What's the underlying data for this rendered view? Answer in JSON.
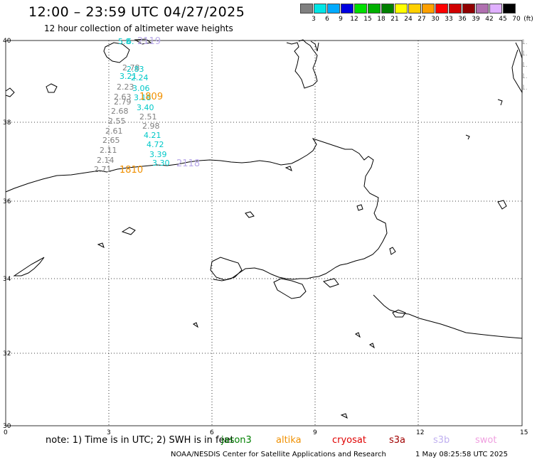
{
  "header": {
    "title": "12:00 – 23:59 UTC 04/27/2025",
    "subtitle": "12 hour collection of altimeter wave heights"
  },
  "color_scale": {
    "values": [
      "3",
      "6",
      "9",
      "12",
      "15",
      "18",
      "21",
      "24",
      "27",
      "30",
      "33",
      "36",
      "39",
      "42",
      "45",
      "70"
    ],
    "unit": "(ft)",
    "colors": [
      "#808080",
      "#00e5e5",
      "#00aaff",
      "#0000e0",
      "#00e000",
      "#00b000",
      "#008000",
      "#ffff00",
      "#ffd000",
      "#ffa000",
      "#ff0000",
      "#d00000",
      "#900000",
      "#b070b0",
      "#e0b0ff",
      "#000000"
    ]
  },
  "axes": {
    "lat_labels": [
      "40",
      "38",
      "36",
      "34",
      "32",
      "30"
    ],
    "lon_labels": [
      "0",
      "3",
      "6",
      "9",
      "12",
      "15"
    ],
    "right_edge_labels": [
      "1.",
      "1.",
      "1.",
      "1.",
      "1."
    ]
  },
  "observations": [
    {
      "text": "5.8",
      "color": "#00c8c8"
    },
    {
      "text": "6.",
      "color": "#00c8c8"
    },
    {
      "text": "2119",
      "color": "#b8a8e8"
    },
    {
      "text": "2.78",
      "color": "#808080"
    },
    {
      "text": "2.83",
      "color": "#00c8c8"
    },
    {
      "text": "3.21",
      "color": "#00c8c8"
    },
    {
      "text": "2.24",
      "color": "#00c8c8"
    },
    {
      "text": "2.23",
      "color": "#808080"
    },
    {
      "text": "3.06",
      "color": "#00c8c8"
    },
    {
      "text": "2.63",
      "color": "#808080"
    },
    {
      "text": "3.18",
      "color": "#00c8c8"
    },
    {
      "text": "1809",
      "color": "#f09000"
    },
    {
      "text": "2.79",
      "color": "#808080"
    },
    {
      "text": "3.40",
      "color": "#00c8c8"
    },
    {
      "text": "2.68",
      "color": "#808080"
    },
    {
      "text": "2.51",
      "color": "#808080"
    },
    {
      "text": "2.55",
      "color": "#808080"
    },
    {
      "text": "2.98",
      "color": "#808080"
    },
    {
      "text": "2.61",
      "color": "#808080"
    },
    {
      "text": "4.21",
      "color": "#00c8c8"
    },
    {
      "text": "2.65",
      "color": "#808080"
    },
    {
      "text": "4.72",
      "color": "#00c8c8"
    },
    {
      "text": "2.11",
      "color": "#808080"
    },
    {
      "text": "3.39",
      "color": "#00c8c8"
    },
    {
      "text": "2.14",
      "color": "#808080"
    },
    {
      "text": "3.30",
      "color": "#00c8c8"
    },
    {
      "text": "2118",
      "color": "#b8a8e8"
    },
    {
      "text": "2.71",
      "color": "#808080"
    },
    {
      "text": "1810",
      "color": "#f09000"
    }
  ],
  "footer": {
    "note": "note:  1) Time is in UTC;  2) SWH is in feet",
    "satellites": [
      {
        "name": "jason3",
        "color": "#008000"
      },
      {
        "name": "altika",
        "color": "#f09000"
      },
      {
        "name": "cryosat",
        "color": "#e00000"
      },
      {
        "name": "s3a",
        "color": "#a00000"
      },
      {
        "name": "s3b",
        "color": "#c0b0f0"
      },
      {
        "name": "swot",
        "color": "#f0a0e0"
      }
    ],
    "credit": "NOAA/NESDIS Center for Satellite Applications and Research",
    "updated": "1 May 08:25:58 UTC 2025"
  }
}
